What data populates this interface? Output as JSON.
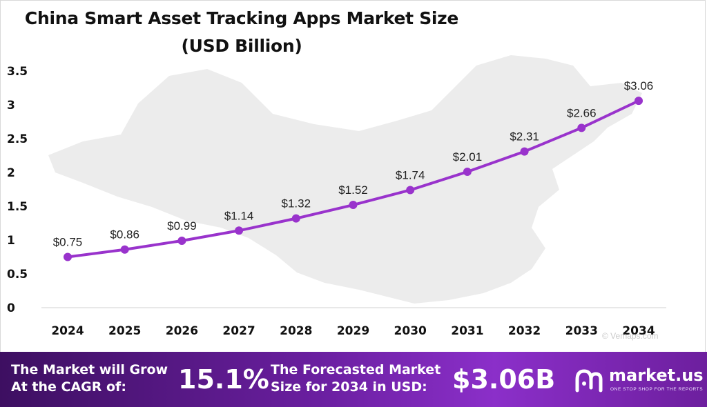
{
  "title_line1": "China Smart Asset Tracking Apps Market Size",
  "title_line2": "(USD Billion)",
  "chart_data": {
    "type": "line",
    "title": "China Smart Asset Tracking Apps Market Size (USD Billion)",
    "xlabel": "",
    "ylabel": "",
    "x": [
      "2024",
      "2025",
      "2026",
      "2027",
      "2028",
      "2029",
      "2030",
      "2031",
      "2032",
      "2033",
      "2034"
    ],
    "values": [
      0.75,
      0.86,
      0.99,
      1.14,
      1.32,
      1.52,
      1.74,
      2.01,
      2.31,
      2.66,
      3.06
    ],
    "data_labels": [
      "$0.75",
      "$0.86",
      "$0.99",
      "$1.14",
      "$1.32",
      "$1.52",
      "$1.74",
      "$2.01",
      "$2.31",
      "$2.66",
      "$3.06"
    ],
    "y_ticks": [
      "0",
      "0.5",
      "1",
      "1.5",
      "2",
      "2.5",
      "3",
      "3.5"
    ],
    "ylim": [
      0,
      3.5
    ],
    "grid": false,
    "line_color": "#9933cc"
  },
  "footer": {
    "cagr_label_line1": "The Market will Grow",
    "cagr_label_line2": "At the CAGR of:",
    "cagr_value": "15.1%",
    "forecast_label_line1": "The Forecasted Market",
    "forecast_label_line2": "Size for 2034 in USD:",
    "forecast_value": "$3.06B"
  },
  "logo": {
    "name": "market.us",
    "tagline": "ONE STOP SHOP FOR THE REPORTS"
  },
  "watermark": "© Vemaps.com"
}
